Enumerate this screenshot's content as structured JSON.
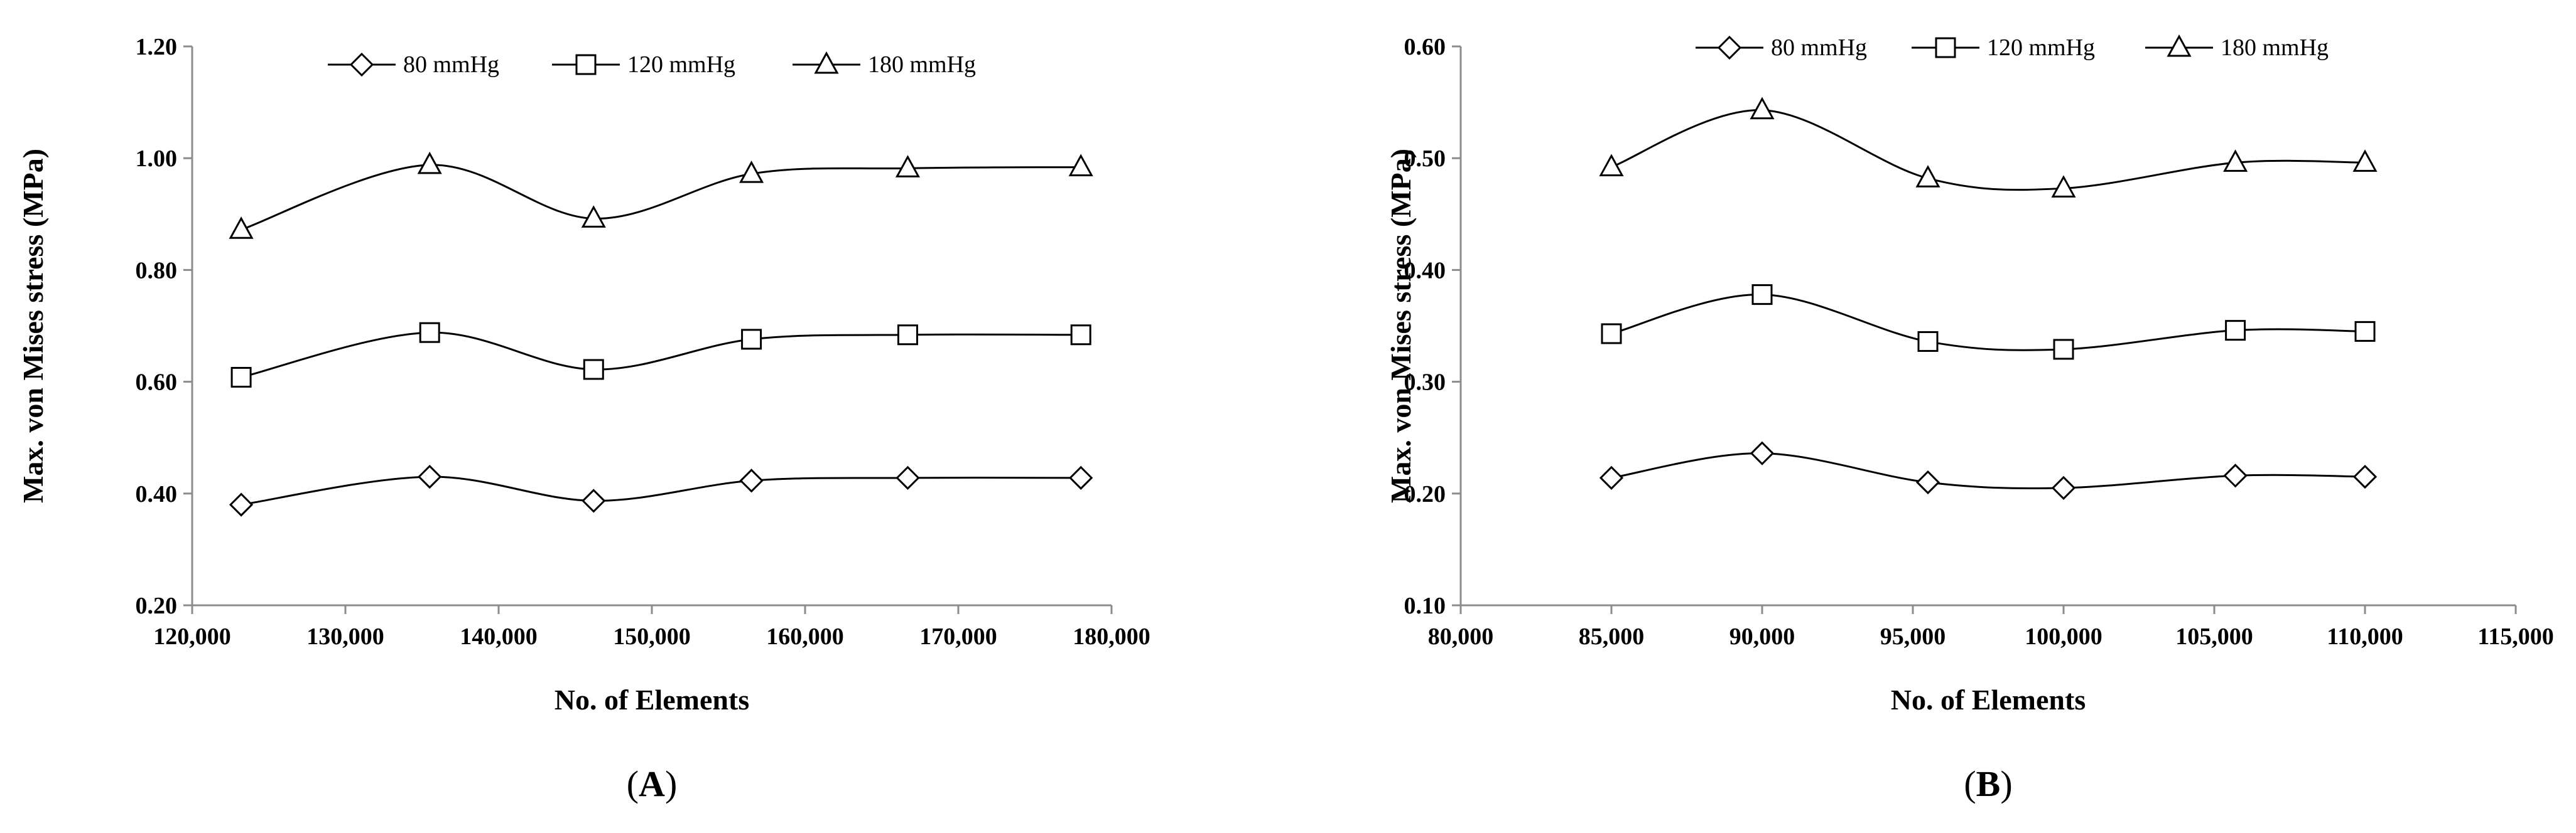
{
  "chart_data": [
    {
      "type": "line",
      "panel_label": "A",
      "xlabel": "No. of Elements",
      "ylabel": "Max. von Mises stress (MPa)",
      "xlim": [
        120000,
        180000
      ],
      "ylim": [
        0.2,
        1.2
      ],
      "xticks": [
        120000,
        130000,
        140000,
        150000,
        160000,
        170000,
        180000
      ],
      "xtick_labels": [
        "120,000",
        "130,000",
        "140,000",
        "150,000",
        "160,000",
        "170,000",
        "180,000"
      ],
      "yticks": [
        0.2,
        0.4,
        0.6,
        0.8,
        1.0,
        1.2
      ],
      "ytick_labels": [
        "0.20",
        "0.40",
        "0.60",
        "0.80",
        "1.00",
        "1.20"
      ],
      "grid": false,
      "smooth": true,
      "legend_position": "top",
      "x": [
        123200,
        135500,
        146200,
        156500,
        166700,
        178000
      ],
      "series": [
        {
          "name": "80 mmHg",
          "marker": "diamond",
          "values": [
            0.38,
            0.43,
            0.387,
            0.423,
            0.428,
            0.428
          ]
        },
        {
          "name": "120 mmHg",
          "marker": "square",
          "values": [
            0.608,
            0.688,
            0.622,
            0.676,
            0.684,
            0.684
          ]
        },
        {
          "name": "180 mmHg",
          "marker": "triangle",
          "values": [
            0.872,
            0.988,
            0.892,
            0.972,
            0.982,
            0.984
          ]
        }
      ]
    },
    {
      "type": "line",
      "panel_label": "B",
      "xlabel": "No. of Elements",
      "ylabel": "Max. von Mises stress (MPa)",
      "xlim": [
        80000,
        115000
      ],
      "ylim": [
        0.1,
        0.6
      ],
      "xticks": [
        80000,
        85000,
        90000,
        95000,
        100000,
        105000,
        110000,
        115000
      ],
      "xtick_labels": [
        "80,000",
        "85,000",
        "90,000",
        "95,000",
        "100,000",
        "105,000",
        "110,000",
        "115,000"
      ],
      "yticks": [
        0.1,
        0.2,
        0.3,
        0.4,
        0.5,
        0.6
      ],
      "ytick_labels": [
        "0.10",
        "0.20",
        "0.30",
        "0.40",
        "0.50",
        "0.60"
      ],
      "grid": false,
      "smooth": true,
      "legend_position": "top",
      "x": [
        85000,
        90000,
        95500,
        100000,
        105700,
        110000
      ],
      "series": [
        {
          "name": "80 mmHg",
          "marker": "diamond",
          "values": [
            0.214,
            0.236,
            0.21,
            0.205,
            0.216,
            0.215
          ]
        },
        {
          "name": "120 mmHg",
          "marker": "square",
          "values": [
            0.343,
            0.378,
            0.336,
            0.329,
            0.346,
            0.345
          ]
        },
        {
          "name": "180 mmHg",
          "marker": "triangle",
          "values": [
            0.492,
            0.543,
            0.482,
            0.473,
            0.496,
            0.496
          ]
        }
      ]
    }
  ]
}
